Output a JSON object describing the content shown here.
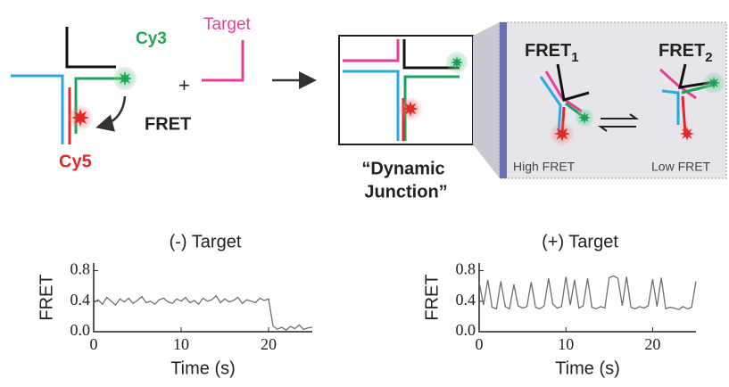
{
  "diagram": {
    "cy3": "Cy3",
    "target": "Target",
    "fret": "FRET",
    "cy5": "Cy5",
    "plus": "+",
    "dynamic_junction": [
      "“Dynamic",
      "Junction”"
    ],
    "fret1": {
      "label": "FRET",
      "sub": "1"
    },
    "fret2": {
      "label": "FRET",
      "sub": "2"
    },
    "high_fret": "High FRET",
    "low_fret": "Low FRET"
  },
  "chart_data": [
    {
      "type": "line",
      "title": "(-) Target",
      "xlabel": "Time (s)",
      "ylabel": "FRET",
      "color": "#6e6e6e",
      "x": [
        0,
        0.5,
        1,
        1.5,
        2,
        2.5,
        3,
        3.5,
        4,
        4.5,
        5,
        5.5,
        6,
        6.5,
        7,
        7.5,
        8,
        8.5,
        9,
        9.5,
        10,
        10.5,
        11,
        11.5,
        12,
        12.5,
        13,
        13.5,
        14,
        14.5,
        15,
        15.5,
        16,
        16.5,
        17,
        17.5,
        18,
        18.5,
        19,
        19.5,
        20,
        20.5,
        21,
        21.5,
        22,
        22.5,
        23,
        23.5,
        24,
        24.5,
        25
      ],
      "values": [
        0.38,
        0.42,
        0.36,
        0.45,
        0.4,
        0.35,
        0.43,
        0.39,
        0.44,
        0.37,
        0.41,
        0.46,
        0.38,
        0.4,
        0.36,
        0.42,
        0.44,
        0.39,
        0.37,
        0.43,
        0.4,
        0.45,
        0.38,
        0.41,
        0.36,
        0.44,
        0.4,
        0.42,
        0.47,
        0.38,
        0.43,
        0.39,
        0.41,
        0.45,
        0.37,
        0.42,
        0.4,
        0.38,
        0.44,
        0.41,
        0.43,
        0.08,
        0.03,
        0.06,
        0.02,
        0.07,
        0.04,
        0.09,
        0.03,
        0.05,
        0.06
      ],
      "xlim": [
        0,
        25
      ],
      "ylim": [
        0,
        0.9
      ],
      "xticks": [
        0,
        10,
        20
      ],
      "yticks": [
        {
          "value": 0,
          "label": "0.0"
        },
        {
          "value": 0.4,
          "label": "0.4"
        },
        {
          "value": 0.8,
          "label": "0.8"
        }
      ]
    },
    {
      "type": "line",
      "title": "(+) Target",
      "xlabel": "Time (s)",
      "ylabel": "FRET",
      "color": "#6e6e6e",
      "x": [
        0,
        0.5,
        1,
        1.5,
        2,
        2.5,
        3,
        3.5,
        4,
        4.5,
        5,
        5.5,
        6,
        6.5,
        7,
        7.5,
        8,
        8.5,
        9,
        9.5,
        10,
        10.5,
        11,
        11.5,
        12,
        12.5,
        13,
        13.5,
        14,
        14.5,
        15,
        15.5,
        16,
        16.5,
        17,
        17.5,
        18,
        18.5,
        19,
        19.5,
        20,
        20.5,
        21,
        21.5,
        22,
        22.5,
        23,
        23.5,
        24,
        24.5,
        25
      ],
      "values": [
        0.65,
        0.35,
        0.68,
        0.32,
        0.3,
        0.66,
        0.33,
        0.3,
        0.62,
        0.34,
        0.31,
        0.33,
        0.65,
        0.32,
        0.3,
        0.34,
        0.7,
        0.36,
        0.31,
        0.33,
        0.72,
        0.35,
        0.68,
        0.31,
        0.34,
        0.7,
        0.32,
        0.3,
        0.33,
        0.31,
        0.71,
        0.73,
        0.7,
        0.34,
        0.72,
        0.32,
        0.3,
        0.33,
        0.31,
        0.34,
        0.69,
        0.33,
        0.71,
        0.3,
        0.32,
        0.31,
        0.29,
        0.33,
        0.3,
        0.32,
        0.66
      ],
      "xlim": [
        0,
        25
      ],
      "ylim": [
        0,
        0.9
      ],
      "xticks": [
        0,
        10,
        20
      ],
      "yticks": [
        {
          "value": 0,
          "label": "0.0"
        },
        {
          "value": 0.4,
          "label": "0.4"
        },
        {
          "value": 0.8,
          "label": "0.8"
        }
      ]
    }
  ]
}
